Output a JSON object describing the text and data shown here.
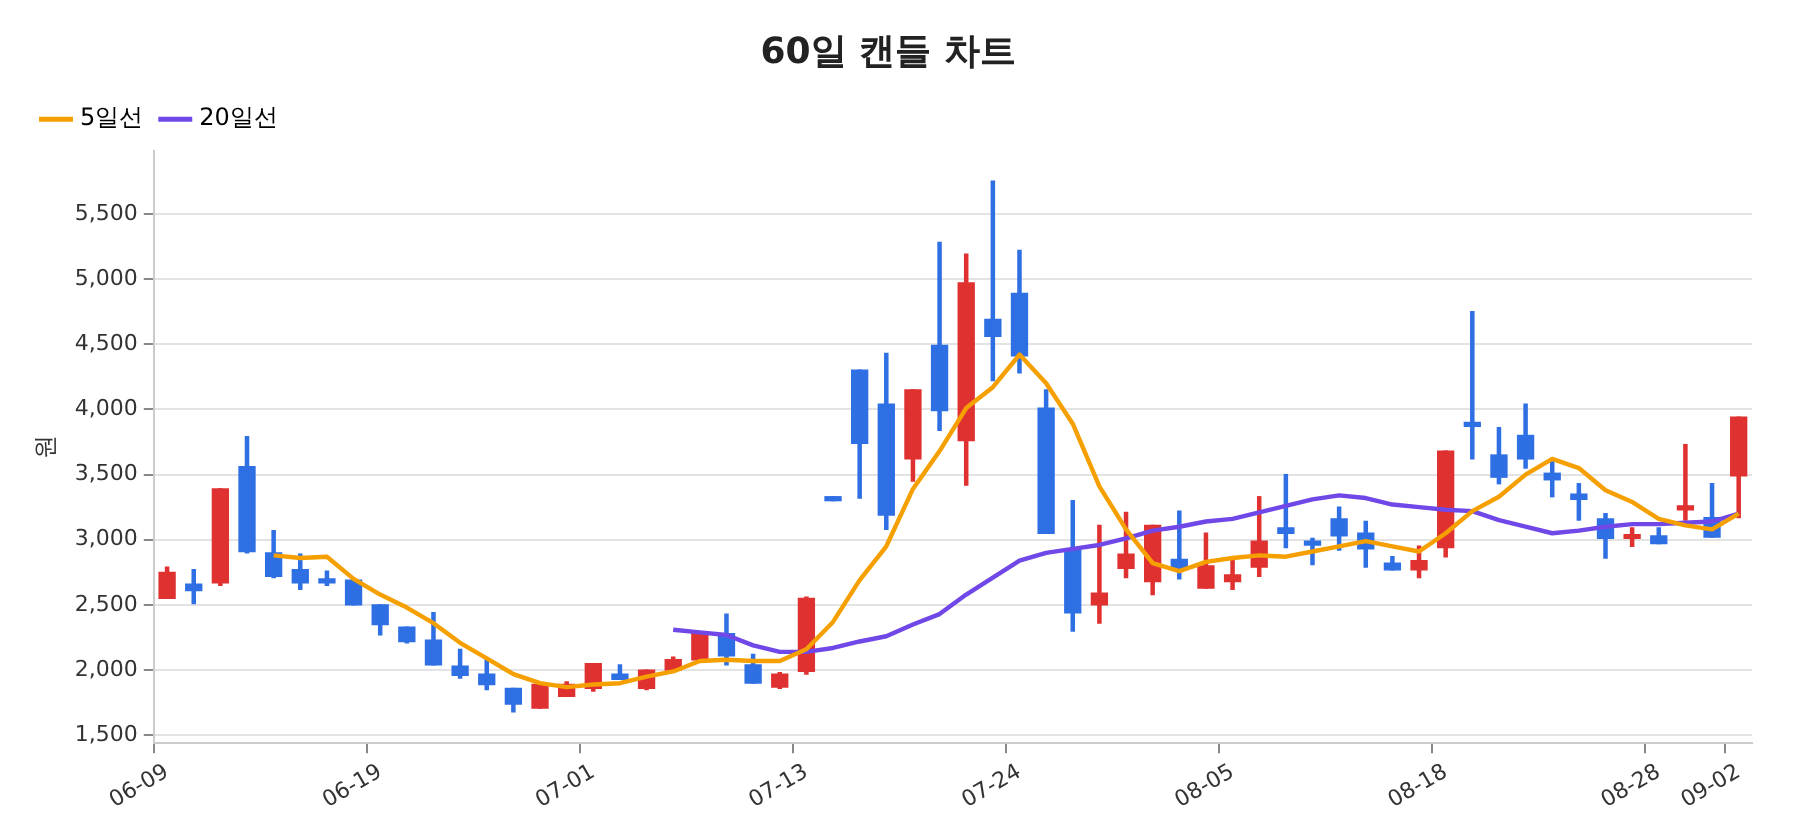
{
  "chart_data": {
    "type": "candlestick",
    "title": "60일 캔들 차트",
    "ylabel": "원",
    "categories": [
      "06-09",
      null,
      null,
      null,
      null,
      null,
      null,
      null,
      "06-19",
      null,
      null,
      null,
      null,
      null,
      null,
      null,
      "07-01",
      null,
      null,
      null,
      null,
      null,
      null,
      null,
      "07-13",
      null,
      null,
      null,
      null,
      null,
      null,
      null,
      "07-24",
      null,
      null,
      null,
      null,
      null,
      null,
      null,
      "08-05",
      null,
      null,
      null,
      null,
      null,
      null,
      null,
      "08-18",
      null,
      null,
      null,
      null,
      null,
      null,
      null,
      "08-28",
      null,
      null,
      "09-02"
    ],
    "ohlc": [
      [
        2550,
        2790,
        2550,
        2750
      ],
      [
        2660,
        2770,
        2510,
        2610
      ],
      [
        2670,
        3390,
        2650,
        3390
      ],
      [
        3560,
        3790,
        2900,
        2910
      ],
      [
        2900,
        3070,
        2710,
        2720
      ],
      [
        2770,
        2890,
        2620,
        2670
      ],
      [
        2700,
        2760,
        2650,
        2670
      ],
      [
        2690,
        2690,
        2500,
        2500
      ],
      [
        2500,
        2500,
        2270,
        2350
      ],
      [
        2330,
        2330,
        2210,
        2220
      ],
      [
        2230,
        2440,
        2040,
        2040
      ],
      [
        2030,
        2160,
        1940,
        1960
      ],
      [
        1970,
        2080,
        1850,
        1890
      ],
      [
        1860,
        1860,
        1680,
        1740
      ],
      [
        1710,
        1890,
        1710,
        1890
      ],
      [
        1800,
        1910,
        1800,
        1890
      ],
      [
        1860,
        2050,
        1840,
        2050
      ],
      [
        1970,
        2040,
        1930,
        1930
      ],
      [
        1860,
        2000,
        1850,
        2000
      ],
      [
        2000,
        2100,
        2000,
        2080
      ],
      [
        2080,
        2280,
        2080,
        2280
      ],
      [
        2280,
        2430,
        2040,
        2110
      ],
      [
        2040,
        2120,
        1900,
        1900
      ],
      [
        1870,
        1980,
        1860,
        1970
      ],
      [
        1990,
        2560,
        1970,
        2550
      ],
      [
        3330,
        3330,
        3300,
        3300
      ],
      [
        4300,
        4300,
        3320,
        3740
      ],
      [
        4040,
        4430,
        3080,
        3190
      ],
      [
        3620,
        4150,
        3450,
        4150
      ],
      [
        4490,
        5280,
        3840,
        3990
      ],
      [
        3760,
        5190,
        3420,
        4970
      ],
      [
        4690,
        5750,
        4220,
        4560
      ],
      [
        4890,
        5220,
        4280,
        4410
      ],
      [
        4010,
        4150,
        3050,
        3050
      ],
      [
        2920,
        3300,
        2300,
        2440
      ],
      [
        2500,
        3110,
        2360,
        2590
      ],
      [
        2780,
        3210,
        2710,
        2890
      ],
      [
        2680,
        3110,
        2580,
        3110
      ],
      [
        2850,
        3220,
        2700,
        2780
      ],
      [
        2630,
        3050,
        2630,
        2800
      ],
      [
        2680,
        2850,
        2620,
        2730
      ],
      [
        2790,
        3330,
        2720,
        2990
      ],
      [
        3090,
        3500,
        2940,
        3050
      ],
      [
        2990,
        3010,
        2810,
        2960
      ],
      [
        3160,
        3250,
        2920,
        3030
      ],
      [
        3050,
        3140,
        2790,
        2930
      ],
      [
        2820,
        2870,
        2770,
        2770
      ],
      [
        2770,
        2950,
        2710,
        2840
      ],
      [
        2940,
        3680,
        2870,
        3680
      ],
      [
        3900,
        4750,
        3620,
        3870
      ],
      [
        3650,
        3860,
        3430,
        3480
      ],
      [
        3800,
        4040,
        3550,
        3620
      ],
      [
        3510,
        3610,
        3330,
        3460
      ],
      [
        3350,
        3430,
        3150,
        3310
      ],
      [
        3160,
        3200,
        2860,
        3010
      ],
      [
        3010,
        3090,
        2950,
        3040
      ],
      [
        3030,
        3090,
        2970,
        2970
      ],
      [
        3230,
        3730,
        3150,
        3260
      ],
      [
        3170,
        3430,
        3020,
        3020
      ],
      [
        3490,
        3940,
        3170,
        3940
      ]
    ],
    "colors": [
      "#e03131",
      "#2f6fe4",
      "#e03131",
      "#2f6fe4",
      "#2f6fe4",
      "#2f6fe4",
      "#2f6fe4",
      "#2f6fe4",
      "#2f6fe4",
      "#2f6fe4",
      "#2f6fe4",
      "#2f6fe4",
      "#2f6fe4",
      "#2f6fe4",
      "#e03131",
      "#e03131",
      "#e03131",
      "#2f6fe4",
      "#e03131",
      "#e03131",
      "#e03131",
      "#2f6fe4",
      "#2f6fe4",
      "#e03131",
      "#e03131",
      "#2f6fe4",
      "#2f6fe4",
      "#2f6fe4",
      "#e03131",
      "#2f6fe4",
      "#e03131",
      "#2f6fe4",
      "#2f6fe4",
      "#2f6fe4",
      "#2f6fe4",
      "#e03131",
      "#e03131",
      "#e03131",
      "#2f6fe4",
      "#e03131",
      "#e03131",
      "#e03131",
      "#2f6fe4",
      "#2f6fe4",
      "#2f6fe4",
      "#2f6fe4",
      "#2f6fe4",
      "#e03131",
      "#e03131",
      "#2f6fe4",
      "#2f6fe4",
      "#2f6fe4",
      "#2f6fe4",
      "#2f6fe4",
      "#2f6fe4",
      "#e03131",
      "#2f6fe4",
      "#e03131",
      "#2f6fe4",
      "#e03131"
    ],
    "series": [
      {
        "type": "line",
        "name": "5일선",
        "color": "#f59f00",
        "values": [
          null,
          null,
          null,
          null,
          2880,
          2860,
          2870,
          2700,
          2580,
          2480,
          2360,
          2210,
          2090,
          1970,
          1900,
          1870,
          1890,
          1900,
          1950,
          1990,
          2070,
          2080,
          2070,
          2070,
          2160,
          2370,
          2690,
          2950,
          3390,
          3680,
          4010,
          4170,
          4420,
          4200,
          3890,
          3410,
          3080,
          2820,
          2760,
          2830,
          2860,
          2880,
          2870,
          2910,
          2950,
          2990,
          2950,
          2910,
          3050,
          3220,
          3330,
          3500,
          3620,
          3550,
          3380,
          3290,
          3160,
          3110,
          3080,
          3200
        ]
      },
      {
        "type": "line",
        "name": "20일선",
        "color": "#7048e8",
        "values": [
          null,
          null,
          null,
          null,
          null,
          null,
          null,
          null,
          null,
          null,
          null,
          null,
          null,
          null,
          null,
          null,
          null,
          null,
          null,
          2310,
          2290,
          2270,
          2190,
          2140,
          2140,
          2170,
          2220,
          2260,
          2350,
          2430,
          2580,
          2710,
          2840,
          2900,
          2930,
          2960,
          3010,
          3070,
          3100,
          3140,
          3160,
          3210,
          3260,
          3310,
          3340,
          3320,
          3270,
          3250,
          3230,
          3220,
          3150,
          3100,
          3050,
          3070,
          3100,
          3120,
          3120,
          3130,
          3140,
          3200
        ]
      }
    ],
    "ylim": [
      1440,
      5980
    ],
    "yticks": [
      {
        "value": 1500,
        "label": "1,500"
      },
      {
        "value": 2000,
        "label": "2,000"
      },
      {
        "value": 2500,
        "label": "2,500"
      },
      {
        "value": 3000,
        "label": "3,000"
      },
      {
        "value": 3500,
        "label": "3,500"
      },
      {
        "value": 4000,
        "label": "4,000"
      },
      {
        "value": 4500,
        "label": "4,500"
      },
      {
        "value": 5000,
        "label": "5,000"
      },
      {
        "value": 5500,
        "label": "5,500"
      }
    ],
    "grid": "y",
    "legend": "top left",
    "marker": "none"
  }
}
